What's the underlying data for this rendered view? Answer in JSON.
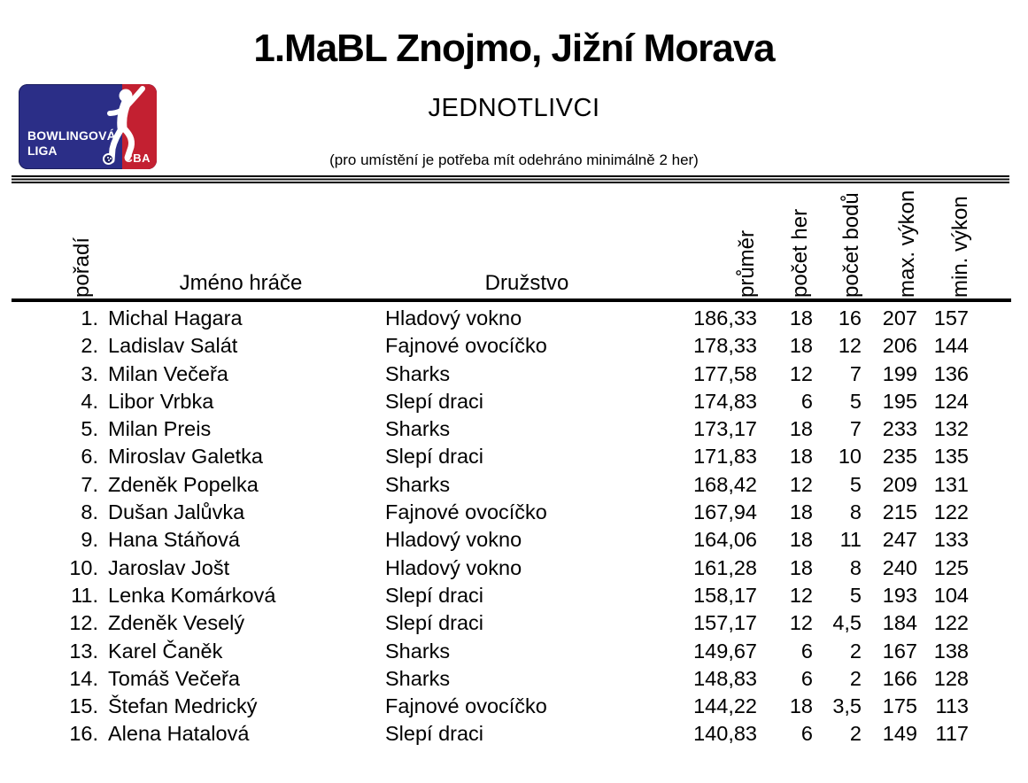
{
  "title": "1.MaBL Znojmo, Jižní Morava",
  "subtitle": "JEDNOTLIVCI",
  "note": "(pro umístění je potřeba mít odehráno minimálně 2 her)",
  "logo": {
    "line1": "BOWLINGOVÁ",
    "line2": "LIGA",
    "cba": "ČBA",
    "colors": {
      "blue": "#2b2e87",
      "red": "#c32031",
      "ball": "#1d2064"
    },
    "bowler_icon": "bowler-silhouette"
  },
  "table": {
    "headers": {
      "rank": "pořadí",
      "name": "Jméno hráče",
      "team": "Družstvo",
      "avg": "průměr",
      "games": "počet her",
      "points": "počet bodů",
      "max": "max. výkon",
      "min": "min. výkon"
    },
    "rows": [
      {
        "rank": "1.",
        "name": "Michal Hagara",
        "team": "Hladový vokno",
        "avg": "186,33",
        "games": "18",
        "points": "16",
        "max": "207",
        "min": "157"
      },
      {
        "rank": "2.",
        "name": "Ladislav Salát",
        "team": "Fajnové ovocíčko",
        "avg": "178,33",
        "games": "18",
        "points": "12",
        "max": "206",
        "min": "144"
      },
      {
        "rank": "3.",
        "name": "Milan Večeřa",
        "team": "Sharks",
        "avg": "177,58",
        "games": "12",
        "points": "7",
        "max": "199",
        "min": "136"
      },
      {
        "rank": "4.",
        "name": "Libor Vrbka",
        "team": "Slepí draci",
        "avg": "174,83",
        "games": "6",
        "points": "5",
        "max": "195",
        "min": "124"
      },
      {
        "rank": "5.",
        "name": "Milan Preis",
        "team": "Sharks",
        "avg": "173,17",
        "games": "18",
        "points": "7",
        "max": "233",
        "min": "132"
      },
      {
        "rank": "6.",
        "name": "Miroslav Galetka",
        "team": "Slepí draci",
        "avg": "171,83",
        "games": "18",
        "points": "10",
        "max": "235",
        "min": "135"
      },
      {
        "rank": "7.",
        "name": "Zdeněk Popelka",
        "team": "Sharks",
        "avg": "168,42",
        "games": "12",
        "points": "5",
        "max": "209",
        "min": "131"
      },
      {
        "rank": "8.",
        "name": "Dušan Jalůvka",
        "team": "Fajnové ovocíčko",
        "avg": "167,94",
        "games": "18",
        "points": "8",
        "max": "215",
        "min": "122"
      },
      {
        "rank": "9.",
        "name": "Hana Stáňová",
        "team": "Hladový vokno",
        "avg": "164,06",
        "games": "18",
        "points": "11",
        "max": "247",
        "min": "133"
      },
      {
        "rank": "10.",
        "name": "Jaroslav Jošt",
        "team": "Hladový vokno",
        "avg": "161,28",
        "games": "18",
        "points": "8",
        "max": "240",
        "min": "125"
      },
      {
        "rank": "11.",
        "name": "Lenka Komárková",
        "team": "Slepí draci",
        "avg": "158,17",
        "games": "12",
        "points": "5",
        "max": "193",
        "min": "104"
      },
      {
        "rank": "12.",
        "name": "Zdeněk Veselý",
        "team": "Slepí draci",
        "avg": "157,17",
        "games": "12",
        "points": "4,5",
        "max": "184",
        "min": "122"
      },
      {
        "rank": "13.",
        "name": "Karel Čaněk",
        "team": "Sharks",
        "avg": "149,67",
        "games": "6",
        "points": "2",
        "max": "167",
        "min": "138"
      },
      {
        "rank": "14.",
        "name": "Tomáš Večeřa",
        "team": "Sharks",
        "avg": "148,83",
        "games": "6",
        "points": "2",
        "max": "166",
        "min": "128"
      },
      {
        "rank": "15.",
        "name": "Štefan Medrický",
        "team": "Fajnové ovocíčko",
        "avg": "144,22",
        "games": "18",
        "points": "3,5",
        "max": "175",
        "min": "113"
      },
      {
        "rank": "16.",
        "name": "Alena Hatalová",
        "team": "Slepí draci",
        "avg": "140,83",
        "games": "6",
        "points": "2",
        "max": "149",
        "min": "117"
      }
    ]
  }
}
